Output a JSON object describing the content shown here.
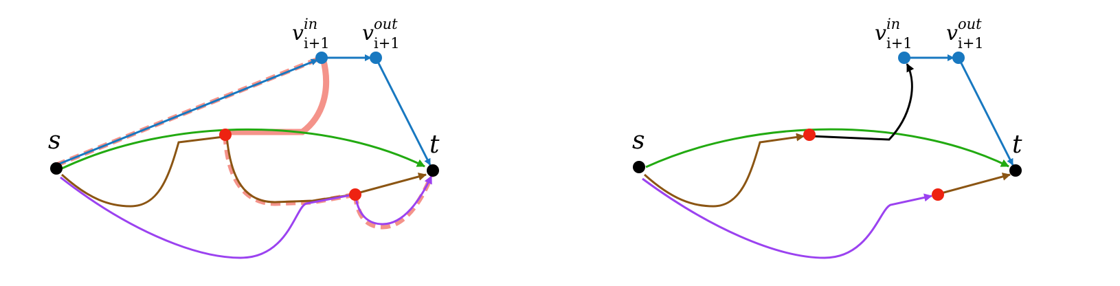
{
  "colors": {
    "blue": "#1878c0",
    "green": "#22aa11",
    "brown": "#8b5513",
    "purple": "#9b42f0",
    "red": "#ee2211",
    "salmon": "#f4938a",
    "black": "#000000"
  },
  "left_panel": {
    "node_s": "s",
    "node_t": "t",
    "node_vin": {
      "base": "v",
      "sup": "in",
      "sub": "i+1"
    },
    "node_vout": {
      "base": "v",
      "sup": "out",
      "sub": "i+1"
    }
  },
  "right_panel": {
    "node_s": "s",
    "node_t": "t",
    "node_vin": {
      "base": "v",
      "sup": "in",
      "sub": "i+1"
    },
    "node_vout": {
      "base": "v",
      "sup": "out",
      "sub": "i+1"
    }
  }
}
